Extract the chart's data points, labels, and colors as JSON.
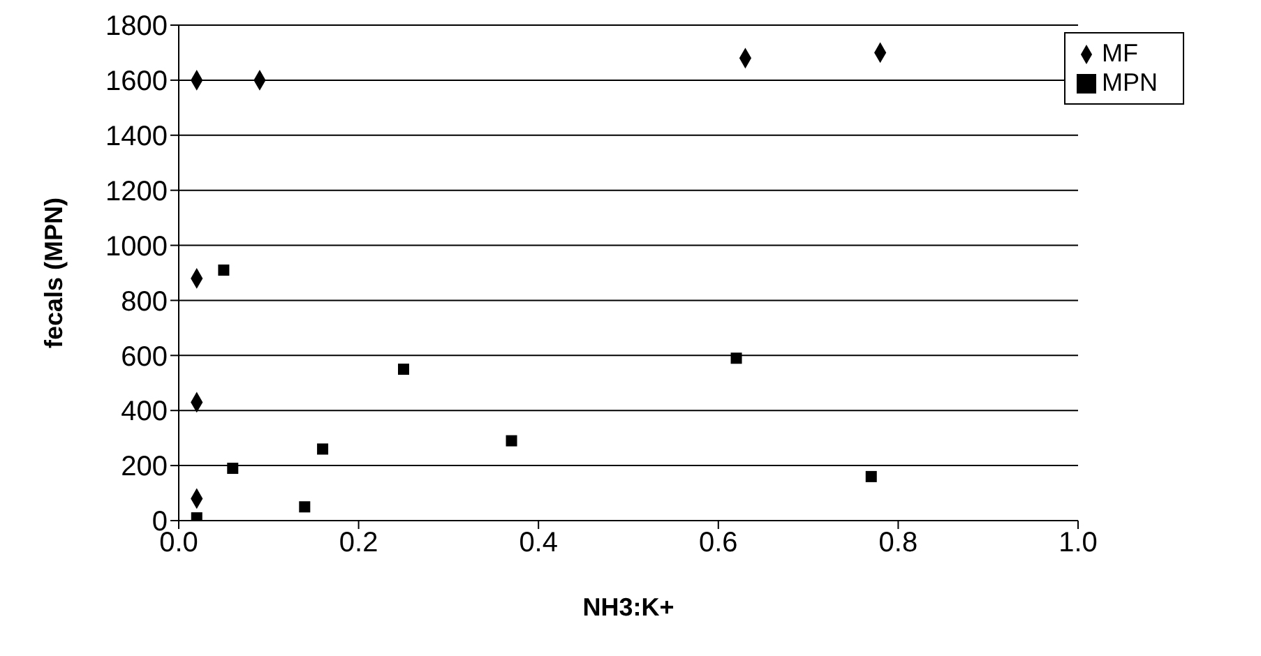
{
  "chart_data": {
    "type": "scatter",
    "xlabel": "NH3:K+",
    "ylabel": "fecals (MPN)",
    "xlim": [
      0,
      1
    ],
    "xticks": [
      {
        "value": 0,
        "label": "0.0"
      },
      0.2,
      0.4,
      0.6,
      0.8,
      {
        "value": 1,
        "label": "1.0"
      }
    ],
    "ylim": [
      0,
      1800
    ],
    "yticks": [
      0,
      200,
      400,
      600,
      800,
      1000,
      1200,
      1400,
      1600,
      1800
    ],
    "grid": "y",
    "legend": "top right",
    "series": [
      {
        "name": "MF",
        "color": "#000000",
        "marker": "diamond",
        "x": [
          0.02,
          0.09,
          0.63,
          0.78,
          0.02,
          0.02,
          0.02
        ],
        "values": [
          1600,
          1600,
          1680,
          1700,
          880,
          430,
          80
        ]
      },
      {
        "name": "MPN",
        "color": "#000000",
        "marker": "square",
        "x": [
          0.05,
          0.06,
          0.14,
          0.16,
          0.25,
          0.37,
          0.62,
          0.77,
          0.02
        ],
        "values": [
          910,
          190,
          50,
          260,
          550,
          290,
          590,
          160,
          10
        ]
      }
    ]
  }
}
